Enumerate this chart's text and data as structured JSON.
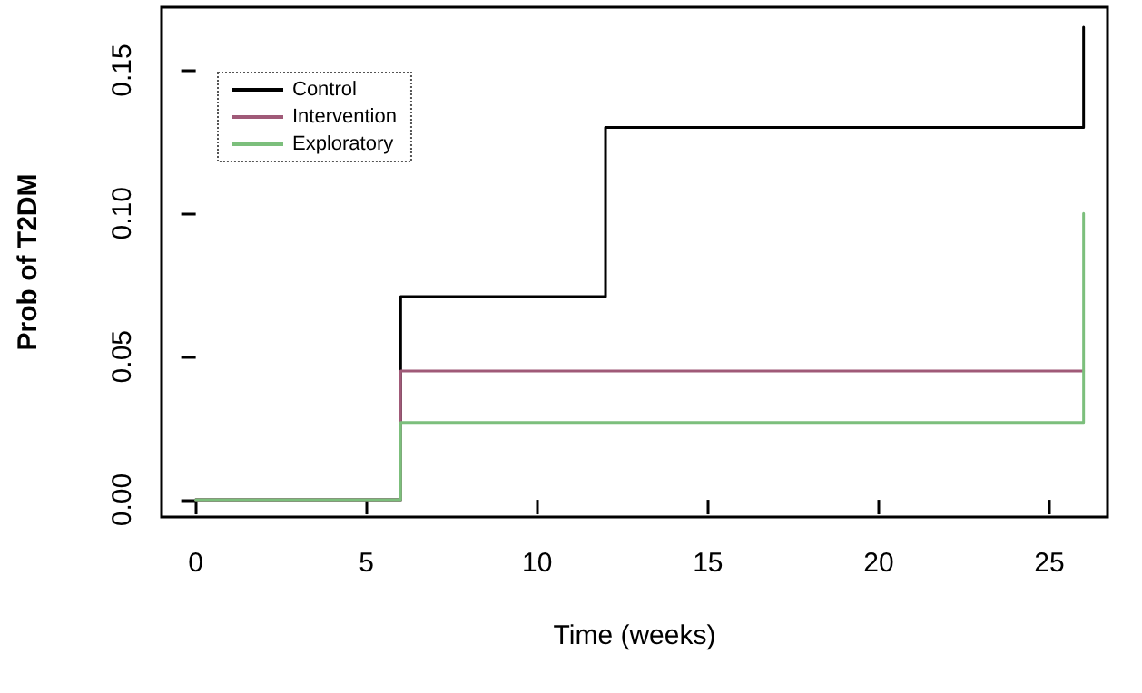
{
  "chart_data": {
    "type": "step",
    "xlabel": "Time (weeks)",
    "ylabel": "Prob of T2DM",
    "series": [
      {
        "name": "Control",
        "color": "#000000",
        "x": [
          0,
          6,
          12,
          26
        ],
        "values": [
          0,
          0.071,
          0.13,
          0.165
        ]
      },
      {
        "name": "Intervention",
        "color": "#a05a78",
        "x": [
          0,
          6,
          26
        ],
        "values": [
          0,
          0.045,
          0.045
        ]
      },
      {
        "name": "Exploratory",
        "color": "#7cbf7c",
        "x": [
          0,
          6,
          26
        ],
        "values": [
          0,
          0.027,
          0.1
        ]
      }
    ],
    "xlim": [
      -1,
      26.7
    ],
    "xticks": [
      0,
      5,
      10,
      15,
      20,
      25
    ],
    "ylim": [
      -0.006,
      0.172
    ],
    "yticks": [
      {
        "value": 0,
        "label": "0.00"
      },
      {
        "value": 0.05,
        "label": "0.05"
      },
      {
        "value": 0.1,
        "label": "0.10"
      },
      {
        "value": 0.15,
        "label": "0.15"
      }
    ],
    "grid": false,
    "legend": "top left",
    "marker": "none",
    "line_style": "solid"
  }
}
